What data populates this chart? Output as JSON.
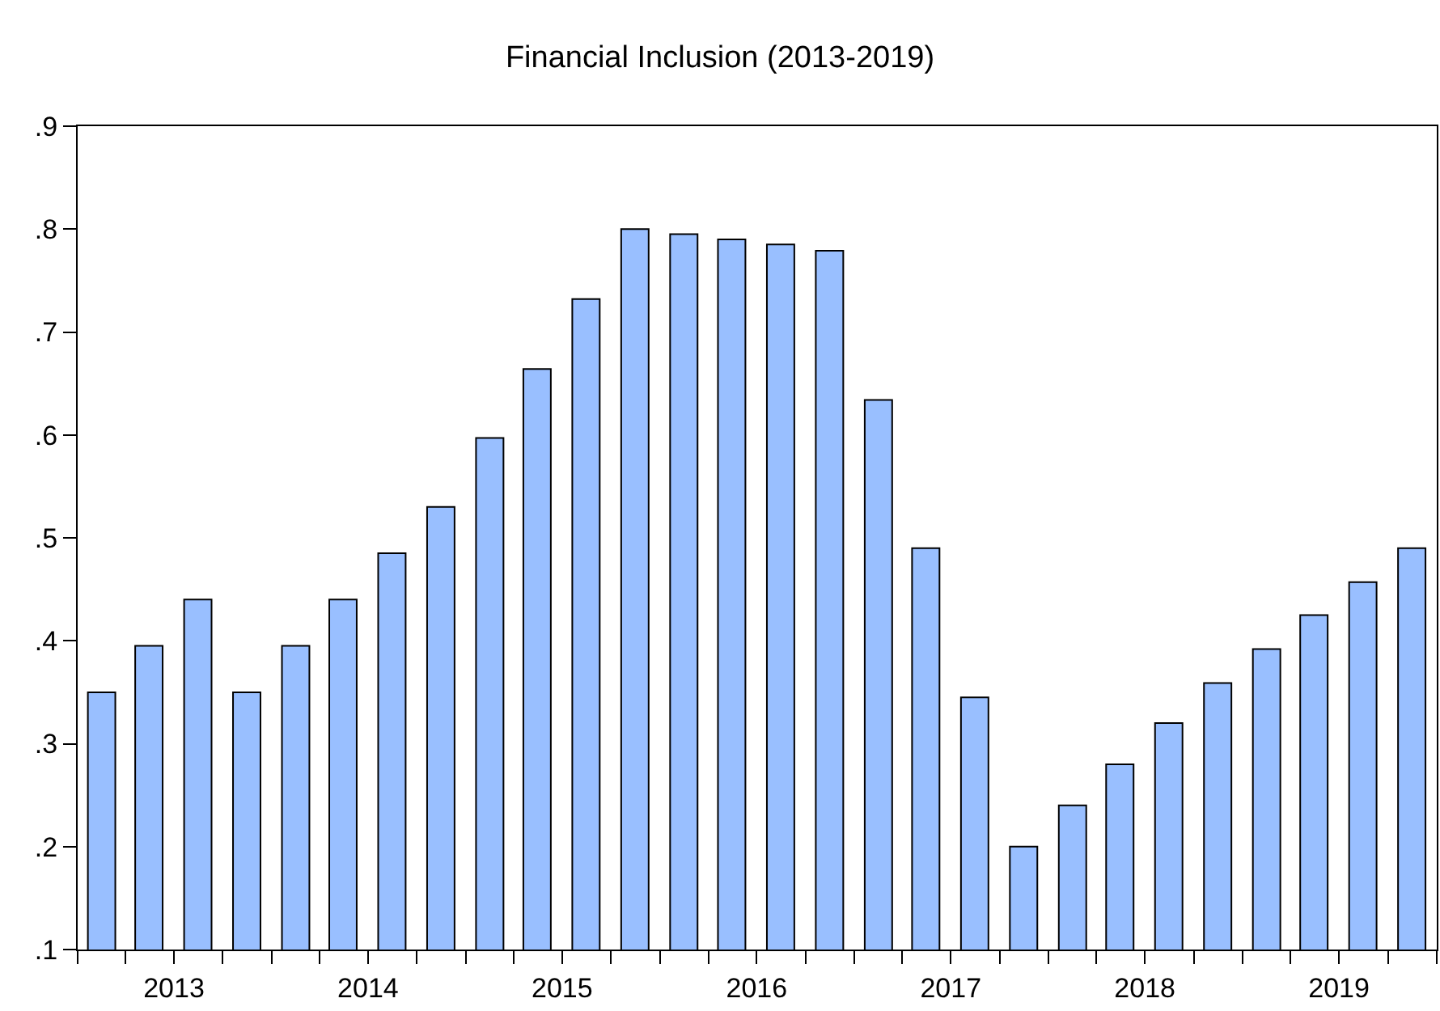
{
  "chart_data": {
    "type": "bar",
    "title": "Financial Inclusion (2013-2019)",
    "x": [
      "2013-02-15",
      "2013-05-15",
      "2013-08-15",
      "2013-11-15",
      "2014-02-15",
      "2014-05-15",
      "2014-08-15",
      "2014-11-15",
      "2015-02-15",
      "2015-05-15",
      "2015-08-15",
      "2015-11-15",
      "2016-02-15",
      "2016-05-15",
      "2016-08-15",
      "2016-11-15",
      "2017-02-15",
      "2017-05-15",
      "2017-08-15",
      "2017-11-15",
      "2018-02-15",
      "2018-05-15",
      "2018-08-15",
      "2018-11-15",
      "2019-02-15",
      "2019-05-15",
      "2019-08-15",
      "2019-11-15"
    ],
    "values": [
      0.35,
      0.395,
      0.44,
      0.35,
      0.395,
      0.44,
      0.485,
      0.53,
      0.597,
      0.664,
      0.732,
      0.8,
      0.795,
      0.79,
      0.785,
      0.779,
      0.634,
      0.49,
      0.345,
      0.2,
      0.24,
      0.28,
      0.32,
      0.359,
      0.392,
      0.425,
      0.457,
      0.49
    ],
    "color": "#99bfff",
    "xlim": [
      "2013-01-01",
      "2020-01-01"
    ],
    "xticks": [
      {
        "value": "2013-01-01",
        "label": null
      },
      {
        "value": "2013-04-01",
        "label": null
      },
      {
        "value": "2013-07-01",
        "label": "2013"
      },
      {
        "value": "2013-10-01",
        "label": null
      },
      {
        "value": "2014-01-01",
        "label": null
      },
      {
        "value": "2014-04-01",
        "label": null
      },
      {
        "value": "2014-07-01",
        "label": "2014"
      },
      {
        "value": "2014-10-01",
        "label": null
      },
      {
        "value": "2015-01-01",
        "label": null
      },
      {
        "value": "2015-04-01",
        "label": null
      },
      {
        "value": "2015-07-01",
        "label": "2015"
      },
      {
        "value": "2015-10-01",
        "label": null
      },
      {
        "value": "2016-01-01",
        "label": null
      },
      {
        "value": "2016-04-01",
        "label": null
      },
      {
        "value": "2016-07-01",
        "label": "2016"
      },
      {
        "value": "2016-10-01",
        "label": null
      },
      {
        "value": "2017-01-01",
        "label": null
      },
      {
        "value": "2017-04-01",
        "label": null
      },
      {
        "value": "2017-07-01",
        "label": "2017"
      },
      {
        "value": "2017-10-01",
        "label": null
      },
      {
        "value": "2018-01-01",
        "label": null
      },
      {
        "value": "2018-04-01",
        "label": null
      },
      {
        "value": "2018-07-01",
        "label": "2018"
      },
      {
        "value": "2018-10-01",
        "label": null
      },
      {
        "value": "2019-01-01",
        "label": null
      },
      {
        "value": "2019-04-01",
        "label": null
      },
      {
        "value": "2019-07-01",
        "label": "2019"
      },
      {
        "value": "2019-10-01",
        "label": null
      },
      {
        "value": "2020-01-01",
        "label": null
      }
    ],
    "ylim": [
      0.1,
      0.9
    ],
    "yticks": [
      {
        "value": 0.1,
        "label": ".1"
      },
      {
        "value": 0.2,
        "label": ".2"
      },
      {
        "value": 0.3,
        "label": ".3"
      },
      {
        "value": 0.4,
        "label": ".4"
      },
      {
        "value": 0.5,
        "label": ".5"
      },
      {
        "value": 0.6,
        "label": ".6"
      },
      {
        "value": 0.7,
        "label": ".7"
      },
      {
        "value": 0.8,
        "label": ".8"
      },
      {
        "value": 0.9,
        "label": ".9"
      }
    ],
    "grid": false
  }
}
